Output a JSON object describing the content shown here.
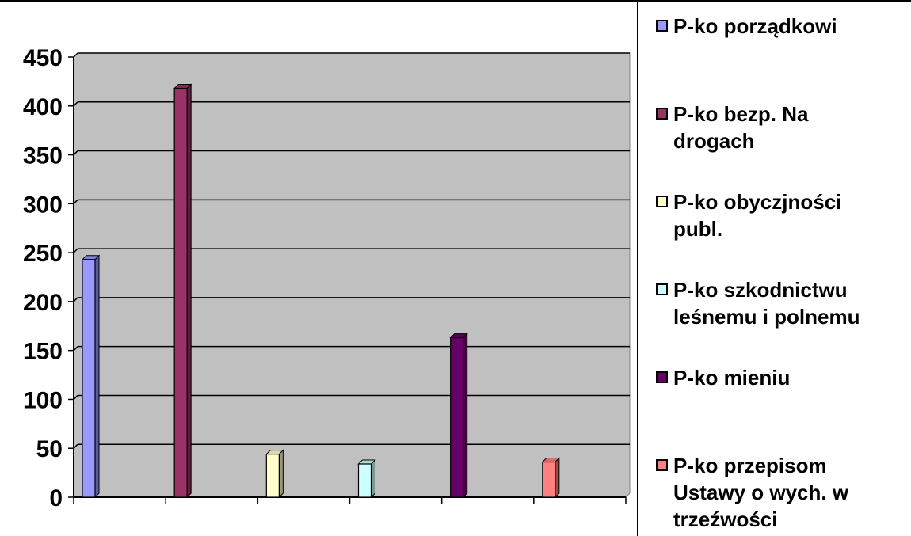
{
  "chart_data": {
    "type": "bar",
    "title": "",
    "xlabel": "",
    "ylabel": "",
    "ylim": [
      0,
      450
    ],
    "yticks": [
      0,
      50,
      100,
      150,
      200,
      250,
      300,
      350,
      400,
      450
    ],
    "grid": true,
    "legend_position": "right",
    "plot_background": "#c0c0c0",
    "series": [
      {
        "name": "P-ko porządkowi",
        "color": "#9999ff",
        "value": 243
      },
      {
        "name": "P-ko bezp. Na drogach",
        "color": "#993366",
        "value": 418
      },
      {
        "name": "P-ko obyczjności publ.",
        "color": "#ffffcc",
        "value": 44
      },
      {
        "name": "P-ko szkodnictwu leśnemu i polnemu",
        "color": "#ccffff",
        "value": 34
      },
      {
        "name": "P-ko mieniu",
        "color": "#660066",
        "value": 163
      },
      {
        "name": "P-ko przepisom Ustawy o wych. w trzeźwości",
        "color": "#ff8080",
        "value": 36
      }
    ]
  }
}
